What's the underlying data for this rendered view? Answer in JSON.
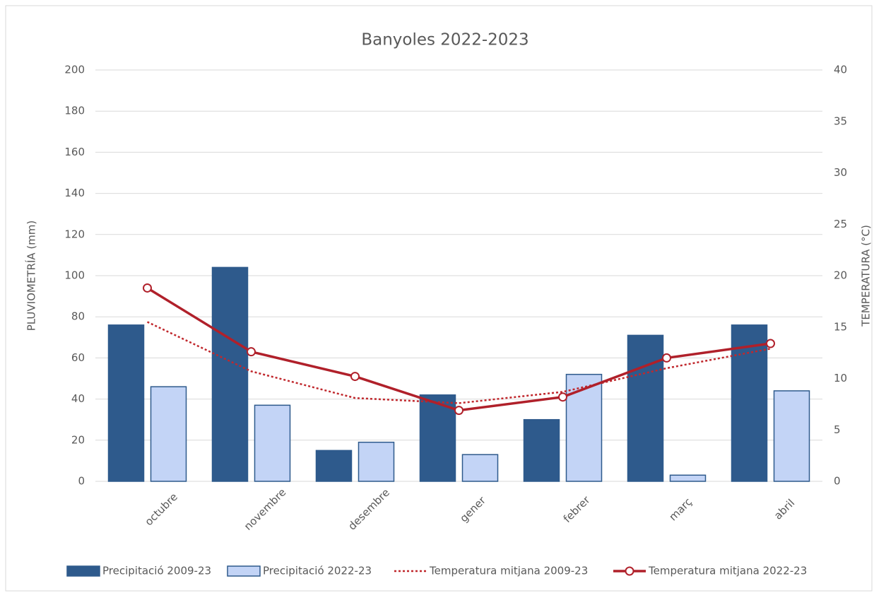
{
  "chart_data": {
    "type": "bar",
    "title": "Banyoles  2022-2023",
    "y_label": "PLUVIOMETRÍA (mm)",
    "y2_label": "TEMPERATURA (°C)",
    "categories": [
      "octubre",
      "novembre",
      "desembre",
      "gener",
      "febrer",
      "març",
      "abril"
    ],
    "series": [
      {
        "name": "Precipitació 2009-23",
        "type": "bar",
        "color": "#2e5a8c",
        "values": [
          76,
          104,
          15,
          42,
          30,
          71,
          76
        ]
      },
      {
        "name": "Precipitació 2022-23",
        "type": "bar",
        "color": "#c3d4f6",
        "values": [
          46,
          37,
          19,
          13,
          52,
          3,
          44
        ]
      },
      {
        "name": "Temperatura mitjana 2009-23",
        "type": "line",
        "axis": "y2",
        "dashed": true,
        "color": "#c0282d",
        "values": [
          15.5,
          10.7,
          8.1,
          7.6,
          8.7,
          11.0,
          12.9
        ]
      },
      {
        "name": "Temperatura mitjana 2022-23",
        "type": "line",
        "axis": "y2",
        "markers": true,
        "color": "#b0202a",
        "values": [
          18.8,
          12.6,
          10.2,
          6.9,
          8.2,
          12.0,
          13.4
        ]
      }
    ],
    "ylim": [
      0,
      200
    ],
    "yticks": [
      0,
      20,
      40,
      60,
      80,
      100,
      120,
      140,
      160,
      180,
      200
    ],
    "y2lim": [
      0,
      40
    ],
    "y2ticks": [
      0,
      5,
      10,
      15,
      20,
      25,
      30,
      35,
      40
    ],
    "grid": true,
    "legend": "bottom"
  }
}
